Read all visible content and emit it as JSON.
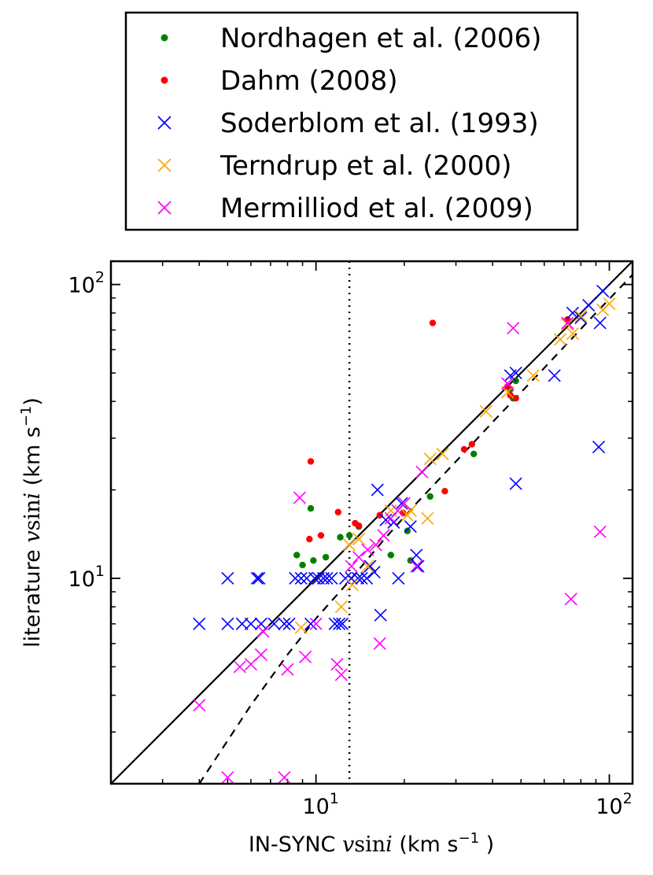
{
  "chart_data": {
    "type": "scatter",
    "xscale": "log",
    "yscale": "log",
    "xlim": [
      2,
      120
    ],
    "ylim": [
      2,
      120
    ],
    "xlabel": {
      "prefix": "IN-SYNC ",
      "v": "v",
      "sin": "sin",
      "i": "i",
      "units_open": " (km s",
      "units_exp": "−1",
      "units_close": " )"
    },
    "ylabel": {
      "prefix": "literature ",
      "v": "v",
      "sin": "sin",
      "i": "i",
      "units_open": " (km s",
      "units_exp": "−1",
      "units_close": ")"
    },
    "ticks": [
      {
        "value": 10,
        "base": "10",
        "exp": "1"
      },
      {
        "value": 100,
        "base": "10",
        "exp": "2"
      }
    ],
    "minor_ticks": [
      3,
      4,
      5,
      6,
      7,
      8,
      9,
      20,
      30,
      40,
      50,
      60,
      70,
      80,
      90
    ],
    "reference_lines": {
      "one_to_one": {
        "style": "solid",
        "color": "#000000",
        "slope": 1,
        "intercept": 0
      },
      "fit": {
        "style": "dashed",
        "color": "#000000",
        "points": [
          [
            4,
            2
          ],
          [
            6,
            3.7
          ],
          [
            8,
            5.5
          ],
          [
            10,
            7.3
          ],
          [
            13,
            9.8
          ],
          [
            17,
            13.5
          ],
          [
            22,
            18
          ],
          [
            30,
            25
          ],
          [
            40,
            34
          ],
          [
            60,
            52
          ],
          [
            90,
            80
          ],
          [
            120,
            108
          ]
        ]
      },
      "resolution_limit": {
        "style": "dotted",
        "color": "#000000",
        "x": 13
      }
    },
    "legend": {
      "placement": "top",
      "entries": [
        {
          "label": "Nordhagen et al. (2006)",
          "marker": "dot",
          "color": "#008000"
        },
        {
          "label": "Dahm (2008)",
          "marker": "dot",
          "color": "#ff0000"
        },
        {
          "label": "Soderblom et al. (1993)",
          "marker": "x",
          "color": "#0000ff"
        },
        {
          "label": "Terndrup et al. (2000)",
          "marker": "x",
          "color": "#ffa500"
        },
        {
          "label": "Mermilliod et al. (2009)",
          "marker": "x",
          "color": "#ff00ff"
        }
      ]
    },
    "series": [
      {
        "name": "Nordhagen et al. (2006)",
        "marker": "dot",
        "color": "#008000",
        "points": [
          [
            9.6,
            17.3
          ],
          [
            8.6,
            12
          ],
          [
            9,
            11.1
          ],
          [
            9.8,
            11.5
          ],
          [
            10.8,
            11.8
          ],
          [
            12.1,
            13.8
          ],
          [
            13,
            14
          ],
          [
            14,
            15
          ],
          [
            20.5,
            14.5
          ],
          [
            18,
            12
          ],
          [
            21,
            11.5
          ],
          [
            24.5,
            19
          ],
          [
            34.5,
            26.5
          ],
          [
            46,
            44
          ],
          [
            48,
            47
          ],
          [
            47,
            41
          ]
        ]
      },
      {
        "name": "Dahm (2008)",
        "marker": "dot",
        "color": "#ff0000",
        "points": [
          [
            9.6,
            25
          ],
          [
            9.5,
            13.6
          ],
          [
            10.4,
            14
          ],
          [
            11.9,
            16.8
          ],
          [
            13.6,
            15.4
          ],
          [
            14,
            15.1
          ],
          [
            16.5,
            16.4
          ],
          [
            19.8,
            16.7
          ],
          [
            25,
            74
          ],
          [
            27.5,
            19.8
          ],
          [
            32,
            27.5
          ],
          [
            34,
            28.6
          ],
          [
            45,
            45
          ],
          [
            46,
            42
          ],
          [
            48,
            41
          ],
          [
            72,
            76
          ]
        ]
      },
      {
        "name": "Soderblom et al. (1993)",
        "marker": "x",
        "color": "#0000ff",
        "points": [
          [
            4,
            7
          ],
          [
            5,
            10
          ],
          [
            5,
            7
          ],
          [
            5.6,
            7
          ],
          [
            6,
            7
          ],
          [
            6.3,
            10
          ],
          [
            6.4,
            10
          ],
          [
            6.5,
            7
          ],
          [
            7.2,
            7
          ],
          [
            7.8,
            7
          ],
          [
            8.1,
            7
          ],
          [
            8.5,
            10
          ],
          [
            8.9,
            10
          ],
          [
            9.3,
            10
          ],
          [
            9.6,
            7
          ],
          [
            9.9,
            10
          ],
          [
            10.2,
            10
          ],
          [
            10.6,
            10
          ],
          [
            10.9,
            10
          ],
          [
            11.3,
            10
          ],
          [
            11.6,
            7
          ],
          [
            12,
            7
          ],
          [
            12.3,
            7
          ],
          [
            12.6,
            10
          ],
          [
            13.2,
            10
          ],
          [
            13.9,
            10
          ],
          [
            14.3,
            10
          ],
          [
            14.9,
            10
          ],
          [
            15.3,
            11
          ],
          [
            15.8,
            10.5
          ],
          [
            16.2,
            20
          ],
          [
            16.6,
            7.5
          ],
          [
            17.3,
            15.8
          ],
          [
            18.4,
            15.5
          ],
          [
            19.1,
            10
          ],
          [
            19.6,
            18
          ],
          [
            21,
            15
          ],
          [
            22,
            12
          ],
          [
            22.3,
            11
          ],
          [
            46,
            49
          ],
          [
            48,
            50
          ],
          [
            48,
            21
          ],
          [
            65,
            49
          ],
          [
            75,
            80
          ],
          [
            80,
            77
          ],
          [
            85,
            85
          ],
          [
            93,
            74
          ],
          [
            95,
            95
          ],
          [
            92,
            28
          ]
        ]
      },
      {
        "name": "Terndrup et al. (2000)",
        "marker": "x",
        "color": "#ffa500",
        "points": [
          [
            8.9,
            6.8
          ],
          [
            12.2,
            8
          ],
          [
            13,
            13
          ],
          [
            13.3,
            9.5
          ],
          [
            14,
            13.6
          ],
          [
            15,
            11
          ],
          [
            16,
            13
          ],
          [
            17,
            14
          ],
          [
            18,
            17
          ],
          [
            20.5,
            16.4
          ],
          [
            21,
            17
          ],
          [
            24,
            16
          ],
          [
            24.5,
            25.5
          ],
          [
            27,
            26.5
          ],
          [
            38,
            37
          ],
          [
            45,
            43
          ],
          [
            55,
            49
          ],
          [
            68,
            65
          ],
          [
            72,
            73
          ],
          [
            75,
            68
          ],
          [
            80,
            78
          ],
          [
            95,
            82
          ],
          [
            100,
            86
          ]
        ]
      },
      {
        "name": "Mermilliod et al. (2009)",
        "marker": "x",
        "color": "#ff00ff",
        "points": [
          [
            4,
            3.7
          ],
          [
            5,
            2.1
          ],
          [
            5.5,
            5
          ],
          [
            6,
            5.1
          ],
          [
            6.5,
            5.5
          ],
          [
            6.6,
            6.6
          ],
          [
            7.8,
            2.1
          ],
          [
            8,
            4.9
          ],
          [
            8.8,
            18.8
          ],
          [
            9.2,
            5.4
          ],
          [
            10,
            7
          ],
          [
            11.8,
            5.1
          ],
          [
            12.2,
            4.7
          ],
          [
            13.2,
            11
          ],
          [
            14,
            11.8
          ],
          [
            15,
            12.5
          ],
          [
            16,
            13
          ],
          [
            16.5,
            6
          ],
          [
            17,
            14
          ],
          [
            18,
            16
          ],
          [
            19,
            17
          ],
          [
            20,
            18
          ],
          [
            22,
            11
          ],
          [
            23,
            23
          ],
          [
            45,
            46
          ],
          [
            47,
            71
          ],
          [
            72,
            74
          ],
          [
            74,
            8.5
          ],
          [
            93,
            14.4
          ]
        ]
      }
    ]
  }
}
